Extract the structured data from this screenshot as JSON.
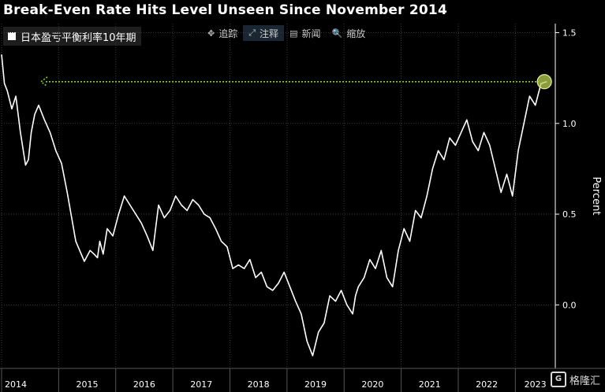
{
  "chart_data": {
    "type": "line",
    "title": "Break-Even Rate Hits Level Unseen Since November 2014",
    "legend": "日本盈亏平衡利率10年期",
    "ylabel": "Percent",
    "ylim": [
      -0.35,
      1.55
    ],
    "yticks": [
      1.5,
      1.0,
      0.5,
      0.0
    ],
    "ytick_labels": [
      "1.5",
      "1.0",
      "0.5",
      "0.0"
    ],
    "xlim": [
      2014.0,
      2023.7
    ],
    "xticks": [
      2014,
      2015,
      2016,
      2017,
      2018,
      2019,
      2020,
      2021,
      2022,
      2023
    ],
    "xtick_labels": [
      "2014",
      "2015",
      "2016",
      "2017",
      "2018",
      "2019",
      "2020",
      "2021",
      "2022",
      "2023"
    ],
    "reference_level": 1.23,
    "series": [
      {
        "name": "日本盈亏平衡利率10年期",
        "x": [
          2014.0,
          2014.05,
          2014.1,
          2014.18,
          2014.25,
          2014.33,
          2014.42,
          2014.47,
          2014.52,
          2014.58,
          2014.65,
          2014.75,
          2014.85,
          2014.95,
          2015.05,
          2015.15,
          2015.3,
          2015.45,
          2015.55,
          2015.62,
          2015.68,
          2015.72,
          2015.78,
          2015.85,
          2015.95,
          2016.05,
          2016.15,
          2016.25,
          2016.35,
          2016.45,
          2016.55,
          2016.65,
          2016.75,
          2016.85,
          2016.95,
          2017.05,
          2017.15,
          2017.25,
          2017.35,
          2017.45,
          2017.55,
          2017.65,
          2017.75,
          2017.85,
          2017.95,
          2018.05,
          2018.15,
          2018.25,
          2018.35,
          2018.45,
          2018.55,
          2018.65,
          2018.75,
          2018.85,
          2018.95,
          2019.05,
          2019.15,
          2019.25,
          2019.35,
          2019.45,
          2019.55,
          2019.65,
          2019.75,
          2019.85,
          2019.95,
          2020.05,
          2020.15,
          2020.2,
          2020.25,
          2020.35,
          2020.45,
          2020.55,
          2020.65,
          2020.75,
          2020.85,
          2020.95,
          2021.05,
          2021.15,
          2021.25,
          2021.35,
          2021.45,
          2021.55,
          2021.65,
          2021.75,
          2021.85,
          2021.95,
          2022.05,
          2022.15,
          2022.25,
          2022.35,
          2022.45,
          2022.55,
          2022.65,
          2022.75,
          2022.85,
          2022.95,
          2023.05,
          2023.15,
          2023.25,
          2023.35,
          2023.45,
          2023.55
        ],
        "y": [
          1.38,
          1.22,
          1.18,
          1.08,
          1.15,
          0.95,
          0.77,
          0.8,
          0.95,
          1.05,
          1.1,
          1.02,
          0.95,
          0.85,
          0.78,
          0.62,
          0.35,
          0.24,
          0.3,
          0.28,
          0.26,
          0.35,
          0.28,
          0.42,
          0.38,
          0.5,
          0.6,
          0.55,
          0.5,
          0.45,
          0.38,
          0.3,
          0.55,
          0.48,
          0.52,
          0.6,
          0.55,
          0.52,
          0.58,
          0.55,
          0.5,
          0.48,
          0.42,
          0.35,
          0.32,
          0.2,
          0.22,
          0.2,
          0.25,
          0.15,
          0.18,
          0.1,
          0.08,
          0.12,
          0.18,
          0.1,
          0.02,
          -0.05,
          -0.2,
          -0.28,
          -0.15,
          -0.1,
          0.05,
          0.02,
          0.08,
          0.0,
          -0.05,
          0.05,
          0.1,
          0.15,
          0.25,
          0.2,
          0.3,
          0.15,
          0.1,
          0.3,
          0.42,
          0.35,
          0.52,
          0.48,
          0.6,
          0.75,
          0.85,
          0.8,
          0.92,
          0.88,
          0.95,
          1.02,
          0.9,
          0.85,
          0.95,
          0.88,
          0.75,
          0.62,
          0.72,
          0.6,
          0.85,
          1.0,
          1.15,
          1.1,
          1.22,
          1.23
        ]
      }
    ]
  },
  "toolbar": {
    "items": [
      {
        "icon": "✥",
        "label": "追踪"
      },
      {
        "icon": "⤢",
        "label": "注释"
      },
      {
        "icon": "▤",
        "label": "新闻"
      },
      {
        "icon": "🔍",
        "label": "缩放"
      }
    ]
  },
  "watermark": {
    "text": "格隆汇"
  },
  "colors": {
    "background": "#000000",
    "line": "#ffffff",
    "reference": "#7fd12b",
    "marker": "#b9d252",
    "grid": "#3a3a3a"
  }
}
